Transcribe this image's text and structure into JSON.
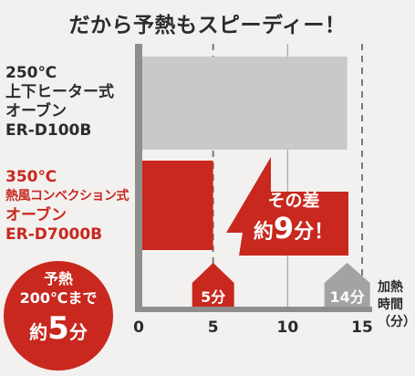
{
  "title": "だから予熱もスピーディー！",
  "chart_data": {
    "type": "bar",
    "orientation": "horizontal",
    "categories": [
      "250℃ 上下ヒーター式 オーブン ER-D100B",
      "350℃ 熱風コンベクション式 オーブン ER-D7000B"
    ],
    "values": [
      14,
      5
    ],
    "xlim": [
      0,
      15
    ],
    "xticks": [
      0,
      5,
      10,
      15
    ],
    "xlabel": [
      "加熱",
      "時間",
      "（分）"
    ],
    "colors": [
      "#c9c9c9",
      "#c8281e"
    ],
    "markers": [
      {
        "value": 5,
        "label": "5分",
        "color": "#c8281e"
      },
      {
        "value": 14,
        "label": "14分",
        "color": "#a3a3a3"
      }
    ],
    "grid": "vertical"
  },
  "labels": {
    "gray": [
      "250℃",
      "上下ヒーター式",
      "オーブン",
      "ER-D100B"
    ],
    "red": [
      "350℃",
      "熱風コンベクション式",
      "オーブン",
      "ER-D7000B"
    ]
  },
  "badge": {
    "line1": "予熱",
    "line2": "200℃まで",
    "prefix": "約",
    "number": "5",
    "suffix": "分"
  },
  "callout": {
    "line1": "その差",
    "prefix": "約",
    "number": "9",
    "suffix": "分！"
  }
}
